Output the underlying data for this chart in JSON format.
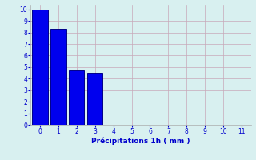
{
  "categories": [
    0,
    1,
    2,
    3
  ],
  "values": [
    10,
    8.3,
    4.7,
    4.5
  ],
  "bar_color": "#0000ee",
  "bar_edge_color": "#000088",
  "background_color": "#d8f0f0",
  "grid_color": "#c8a8b8",
  "xlabel": "Précipitations 1h ( mm )",
  "xlabel_color": "#0000cc",
  "tick_color": "#0000cc",
  "xlim": [
    -0.5,
    11.5
  ],
  "ylim": [
    0,
    10.4
  ],
  "xticks": [
    0,
    1,
    2,
    3,
    4,
    5,
    6,
    7,
    8,
    9,
    10,
    11
  ],
  "yticks": [
    0,
    1,
    2,
    3,
    4,
    5,
    6,
    7,
    8,
    9,
    10
  ],
  "bar_width": 0.85
}
